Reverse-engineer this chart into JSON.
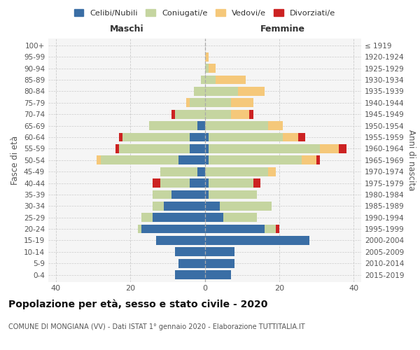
{
  "age_groups": [
    "0-4",
    "5-9",
    "10-14",
    "15-19",
    "20-24",
    "25-29",
    "30-34",
    "35-39",
    "40-44",
    "45-49",
    "50-54",
    "55-59",
    "60-64",
    "65-69",
    "70-74",
    "75-79",
    "80-84",
    "85-89",
    "90-94",
    "95-99",
    "100+"
  ],
  "birth_years": [
    "2015-2019",
    "2010-2014",
    "2005-2009",
    "2000-2004",
    "1995-1999",
    "1990-1994",
    "1985-1989",
    "1980-1984",
    "1975-1979",
    "1970-1974",
    "1965-1969",
    "1960-1964",
    "1955-1959",
    "1950-1954",
    "1945-1949",
    "1940-1944",
    "1935-1939",
    "1930-1934",
    "1925-1929",
    "1920-1924",
    "≤ 1919"
  ],
  "maschi": {
    "celibi": [
      8,
      7,
      8,
      13,
      17,
      14,
      11,
      9,
      4,
      2,
      7,
      4,
      4,
      2,
      0,
      0,
      0,
      0,
      0,
      0,
      0
    ],
    "coniugati": [
      0,
      0,
      0,
      0,
      1,
      3,
      3,
      5,
      8,
      10,
      21,
      19,
      18,
      13,
      8,
      4,
      3,
      1,
      0,
      0,
      0
    ],
    "vedovi": [
      0,
      0,
      0,
      0,
      0,
      0,
      0,
      0,
      0,
      0,
      1,
      0,
      0,
      0,
      0,
      1,
      0,
      0,
      0,
      0,
      0
    ],
    "divorziati": [
      0,
      0,
      0,
      0,
      0,
      0,
      0,
      0,
      2,
      0,
      0,
      1,
      1,
      0,
      1,
      0,
      0,
      0,
      0,
      0,
      0
    ]
  },
  "femmine": {
    "nubili": [
      7,
      8,
      8,
      28,
      16,
      5,
      4,
      1,
      1,
      0,
      1,
      1,
      1,
      0,
      0,
      0,
      0,
      0,
      0,
      0,
      0
    ],
    "coniugate": [
      0,
      0,
      0,
      0,
      3,
      9,
      14,
      13,
      12,
      17,
      25,
      30,
      20,
      17,
      7,
      7,
      9,
      3,
      1,
      0,
      0
    ],
    "vedove": [
      0,
      0,
      0,
      0,
      0,
      0,
      0,
      0,
      0,
      2,
      4,
      5,
      4,
      4,
      5,
      6,
      7,
      8,
      2,
      1,
      0
    ],
    "divorziate": [
      0,
      0,
      0,
      0,
      1,
      0,
      0,
      0,
      2,
      0,
      1,
      2,
      2,
      0,
      1,
      0,
      0,
      0,
      0,
      0,
      0
    ]
  },
  "colors": {
    "celibi": "#3a6ea5",
    "coniugati": "#c5d5a0",
    "vedovi": "#f5c87a",
    "divorziati": "#cc2222"
  },
  "xlim": 42,
  "title": "Popolazione per età, sesso e stato civile - 2020",
  "subtitle": "COMUNE DI MONGIANA (VV) - Dati ISTAT 1° gennaio 2020 - Elaborazione TUTTITALIA.IT",
  "ylabel_left": "Fasce di età",
  "ylabel_right": "Anni di nascita",
  "xlabel_maschi": "Maschi",
  "xlabel_femmine": "Femmine",
  "xticks": [
    -40,
    -20,
    0,
    20,
    40
  ]
}
